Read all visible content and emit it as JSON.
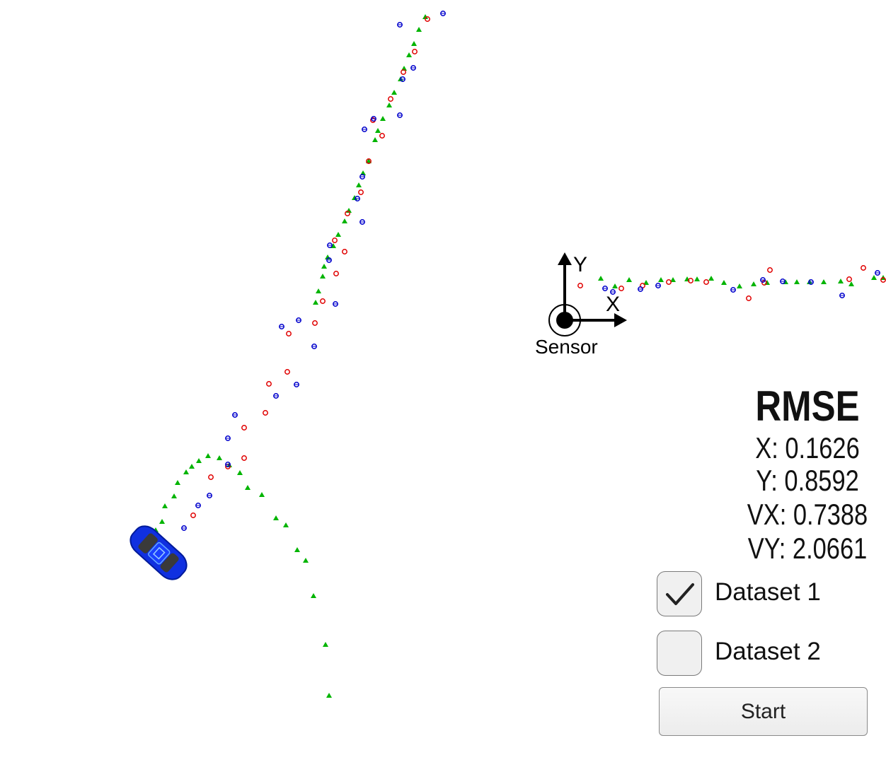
{
  "sensor": {
    "label": "Sensor",
    "x_axis_label": "X",
    "y_axis_label": "Y"
  },
  "rmse": {
    "title": "RMSE",
    "x": "X: 0.1626",
    "y": "Y: 0.8592",
    "vx": "VX: 0.7388",
    "vy": "VY: 2.0661"
  },
  "controls": {
    "dataset1": {
      "label": "Dataset 1",
      "checked": true
    },
    "dataset2": {
      "label": "Dataset 2",
      "checked": false
    },
    "start_label": "Start"
  },
  "colors": {
    "lidar": "#e00000",
    "radar": "#0000cc",
    "estimate": "#00b400",
    "car": "#1030e0"
  },
  "icons": {
    "car": "car-icon",
    "check": "check-icon",
    "sensor": "sensor-origin-icon"
  }
}
